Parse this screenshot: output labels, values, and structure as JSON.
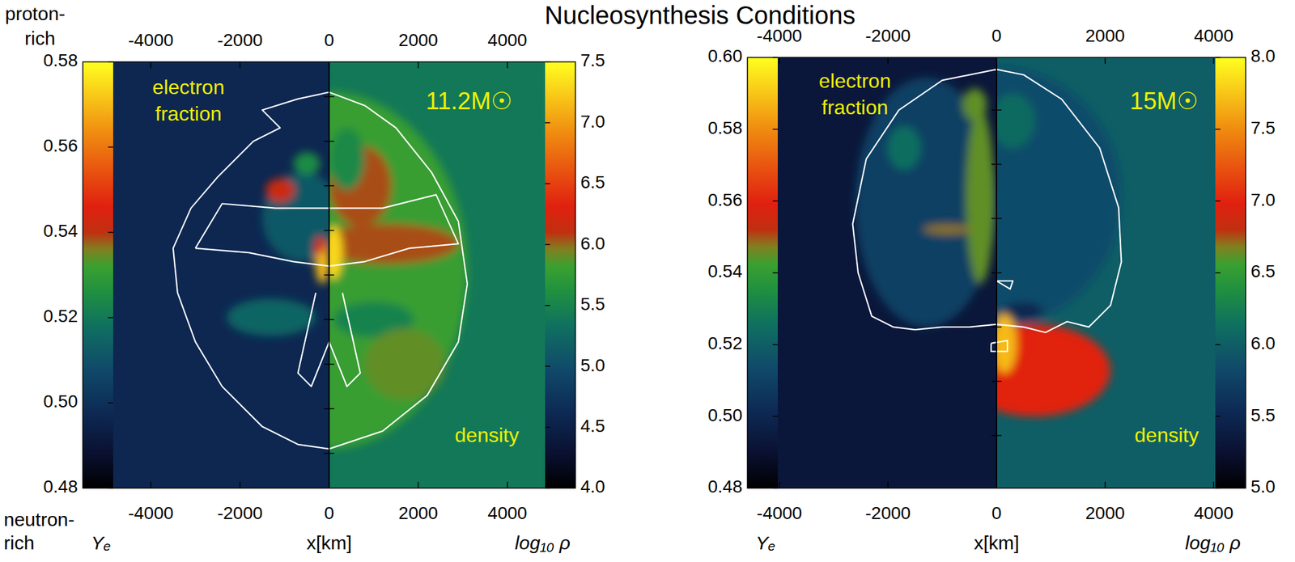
{
  "title": "Nucleosynthesis Conditions",
  "side_labels": {
    "top": [
      "proton-",
      "rich"
    ],
    "bottom": [
      "neutron-",
      "rich"
    ]
  },
  "chart_data": [
    {
      "type": "heatmap",
      "annotation": "11.2M☉",
      "xlabel": "x[km]",
      "xlim": [
        -5525,
        5525
      ],
      "ylim": [
        -4780,
        4780
      ],
      "xticks": [
        -4000,
        -2000,
        0,
        2000,
        4000
      ],
      "yticks": [
        -4000,
        -3000,
        -2000,
        -1000,
        0,
        1000,
        2000,
        3000,
        4000
      ],
      "tick_labels": "x",
      "fields": [
        {
          "label": [
            "electron",
            "fraction"
          ],
          "colorbar_label": "Yₑ",
          "range": [
            0.48,
            0.58
          ],
          "ticks": [
            0.48,
            {
              "value": 0.5,
              "label": "0.50"
            },
            0.52,
            0.54,
            0.56,
            0.58
          ],
          "background": 0.497,
          "regions": [
            {
              "x": -600,
              "y": 1300,
              "rx": 900,
              "ry": 1000,
              "value": 0.512
            },
            {
              "x": -1100,
              "y": 1900,
              "rx": 320,
              "ry": 260,
              "value": 0.542
            },
            {
              "x": -1300,
              "y": -950,
              "rx": 1000,
              "ry": 420,
              "value": 0.515
            },
            {
              "x": -500,
              "y": 2500,
              "rx": 300,
              "ry": 250,
              "value": 0.525
            },
            {
              "x": -150,
              "y": 300,
              "rx": 160,
              "ry": 500,
              "value": 0.57
            },
            {
              "x": -200,
              "y": 650,
              "rx": 120,
              "ry": 200,
              "value": 0.545
            }
          ]
        },
        {
          "label": [
            "density"
          ],
          "colorbar_label": "log₁₀ ρ",
          "range": [
            4,
            7.5
          ],
          "ticks": [
            {
              "value": 4,
              "label": "4.0"
            },
            4.5,
            {
              "value": 5,
              "label": "5.0"
            },
            5.5,
            {
              "value": 6,
              "label": "6.0"
            },
            6.5,
            {
              "value": 7,
              "label": "7.0"
            },
            7.5
          ],
          "background": 5.4,
          "regions": [
            {
              "x": 0,
              "y": 100,
              "rx": 3100,
              "ry": 4000,
              "value": 5.8
            },
            {
              "x": 1300,
              "y": 700,
              "rx": 1600,
              "ry": 450,
              "value": 6.05
            },
            {
              "x": 700,
              "y": 2000,
              "rx": 700,
              "ry": 900,
              "value": 6.05
            },
            {
              "x": 1000,
              "y": -1000,
              "rx": 900,
              "ry": 400,
              "value": 5.5
            },
            {
              "x": 400,
              "y": 2600,
              "rx": 400,
              "ry": 700,
              "value": 5.55
            },
            {
              "x": 1700,
              "y": -2000,
              "rx": 900,
              "ry": 800,
              "value": 5.9
            },
            {
              "x": 100,
              "y": 500,
              "rx": 200,
              "ry": 600,
              "value": 7.3
            }
          ]
        }
      ],
      "contours": [
        {
          "x": [
            0,
            -700,
            -1500,
            -1100,
            -1700,
            -2500,
            -3100,
            -3500,
            -3400,
            -3000,
            -2400,
            -1500,
            -700,
            0,
            1200,
            2200,
            2900,
            3100,
            2900,
            2300,
            1500,
            800,
            0
          ],
          "y": [
            4100,
            3950,
            3700,
            3300,
            3000,
            2200,
            1500,
            600,
            -400,
            -1500,
            -2500,
            -3400,
            -3800,
            -3900,
            -3500,
            -2700,
            -1500,
            -200,
            1200,
            2300,
            3300,
            3800,
            4100
          ]
        },
        {
          "x": [
            -3000,
            -1800,
            -800,
            0,
            800,
            1800,
            2900,
            2400,
            1200,
            0,
            -1200,
            -2400,
            -3000
          ],
          "y": [
            600,
            500,
            300,
            200,
            300,
            600,
            700,
            1800,
            1500,
            1500,
            1500,
            1600,
            600
          ]
        },
        {
          "x": [
            -300,
            -700,
            -400,
            0,
            400,
            700,
            300
          ],
          "y": [
            -400,
            -2200,
            -2500,
            -1500,
            -2500,
            -2200,
            -400
          ]
        }
      ]
    },
    {
      "type": "heatmap",
      "annotation": "15M☉",
      "xlabel": "x[km]",
      "xlim": [
        -4590,
        4590
      ],
      "ylim": [
        -3970,
        3970
      ],
      "xticks": [
        -4000,
        -2000,
        0,
        2000,
        4000
      ],
      "yticks": [
        -3000,
        -2000,
        -1000,
        0,
        1000,
        2000,
        3000
      ],
      "tick_labels": "x",
      "fields": [
        {
          "label": [
            "electron",
            "fraction"
          ],
          "colorbar_label": "Yₑ",
          "range": [
            0.48,
            0.6
          ],
          "ticks": [
            0.48,
            {
              "value": 0.5,
              "label": "0.50"
            },
            0.52,
            0.54,
            0.56,
            0.58,
            {
              "value": 0.6,
              "label": "0.60"
            }
          ],
          "background": 0.493,
          "regions": [
            {
              "x": -1300,
              "y": 1300,
              "rx": 1300,
              "ry": 2300,
              "value": 0.51
            },
            {
              "x": -300,
              "y": 1400,
              "rx": 260,
              "ry": 1600,
              "value": 0.545
            },
            {
              "x": -900,
              "y": 800,
              "rx": 450,
              "ry": 90,
              "value": 0.548
            },
            {
              "x": -400,
              "y": 3100,
              "rx": 220,
              "ry": 300,
              "value": 0.545
            },
            {
              "x": -1700,
              "y": 2300,
              "rx": 300,
              "ry": 400,
              "value": 0.525
            }
          ]
        },
        {
          "label": [
            "density"
          ],
          "colorbar_label": "log₁₀ ρ",
          "range": [
            5,
            8
          ],
          "ticks": [
            {
              "value": 5,
              "label": "5.0"
            },
            5.5,
            {
              "value": 6,
              "label": "6.0"
            },
            6.5,
            {
              "value": 7,
              "label": "7.0"
            },
            7.5,
            {
              "value": 8,
              "label": "8.0"
            }
          ],
          "background": 6.0,
          "regions": [
            {
              "x": 0,
              "y": 1400,
              "rx": 2300,
              "ry": 2400,
              "value": 5.85
            },
            {
              "x": 700,
              "y": -1800,
              "rx": 1400,
              "ry": 850,
              "value": 7.0
            },
            {
              "x": 150,
              "y": -1300,
              "rx": 220,
              "ry": 550,
              "value": 7.7
            },
            {
              "x": 500,
              "y": -700,
              "rx": 350,
              "ry": 160,
              "value": 5.5
            },
            {
              "x": 300,
              "y": 2800,
              "rx": 400,
              "ry": 500,
              "value": 6.1
            }
          ]
        }
      ],
      "contours": [
        {
          "x": [
            0,
            -1000,
            -1800,
            -2400,
            -2650,
            -2550,
            -2300,
            -1900,
            -1500,
            -1000,
            -500,
            0,
            500,
            900,
            1300,
            1700,
            2100,
            2300,
            2250,
            1900,
            1200,
            500,
            0
          ],
          "y": [
            3750,
            3550,
            3000,
            2100,
            900,
            0,
            -800,
            -1000,
            -1050,
            -1000,
            -1000,
            -950,
            -1000,
            -1100,
            -900,
            -1000,
            -600,
            200,
            1200,
            2300,
            3200,
            3650,
            3750
          ]
        },
        {
          "x": [
            -100,
            200,
            200,
            -100,
            -100
          ],
          "y": [
            -1300,
            -1250,
            -1450,
            -1450,
            -1300
          ]
        },
        {
          "x": [
            0,
            300,
            250,
            0
          ],
          "y": [
            -150,
            -150,
            -300,
            -150
          ]
        }
      ]
    }
  ]
}
